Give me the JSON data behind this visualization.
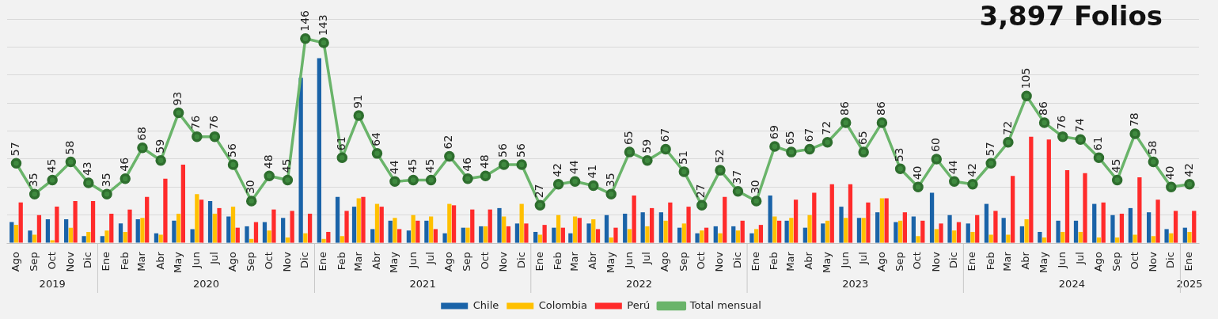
{
  "chart_data": {
    "type": "bar",
    "title": "3,897 Folios",
    "x": [
      "2019-08",
      "2019-09",
      "2019-10",
      "2019-11",
      "2019-12",
      "2020-01",
      "2020-02",
      "2020-03",
      "2020-04",
      "2020-05",
      "2020-06",
      "2020-07",
      "2020-08",
      "2020-09",
      "2020-10",
      "2020-11",
      "2020-12",
      "2021-01",
      "2021-02",
      "2021-03",
      "2021-04",
      "2021-05",
      "2021-06",
      "2021-07",
      "2021-08",
      "2021-09",
      "2021-10",
      "2021-11",
      "2021-12",
      "2022-01",
      "2022-02",
      "2022-03",
      "2022-04",
      "2022-05",
      "2022-06",
      "2022-07",
      "2022-08",
      "2022-09",
      "2022-10",
      "2022-11",
      "2022-12",
      "2023-01",
      "2023-02",
      "2023-03",
      "2023-04",
      "2023-05",
      "2023-06",
      "2023-07",
      "2023-08",
      "2023-09",
      "2023-10",
      "2023-11",
      "2023-12",
      "2024-01",
      "2024-02",
      "2024-03",
      "2024-04",
      "2024-05",
      "2024-06",
      "2024-07",
      "2024-08",
      "2024-09",
      "2024-10",
      "2024-11",
      "2024-12",
      "2025-01"
    ],
    "xticks": [
      {
        "value": "2019-08",
        "label": "Ago"
      },
      {
        "value": "2019-09",
        "label": "Sep"
      },
      {
        "value": "2019-10",
        "label": "Oct"
      },
      {
        "value": "2019-11",
        "label": "Nov"
      },
      {
        "value": "2019-12",
        "label": "Dic"
      },
      {
        "value": "2020-01",
        "label": "Ene"
      },
      {
        "value": "2020-02",
        "label": "Feb"
      },
      {
        "value": "2020-03",
        "label": "Mar"
      },
      {
        "value": "2020-04",
        "label": "Abr"
      },
      {
        "value": "2020-05",
        "label": "May"
      },
      {
        "value": "2020-06",
        "label": "Jun"
      },
      {
        "value": "2020-07",
        "label": "Jul"
      },
      {
        "value": "2020-08",
        "label": "Ago"
      },
      {
        "value": "2020-09",
        "label": "Sep"
      },
      {
        "value": "2020-10",
        "label": "Oct"
      },
      {
        "value": "2020-11",
        "label": "Nov"
      },
      {
        "value": "2020-12",
        "label": "Dic"
      },
      {
        "value": "2021-01",
        "label": "Ene"
      },
      {
        "value": "2021-02",
        "label": "Feb"
      },
      {
        "value": "2021-03",
        "label": "Mar"
      },
      {
        "value": "2021-04",
        "label": "Abr"
      },
      {
        "value": "2021-05",
        "label": "May"
      },
      {
        "value": "2021-06",
        "label": "Jun"
      },
      {
        "value": "2021-07",
        "label": "Jul"
      },
      {
        "value": "2021-08",
        "label": "Ago"
      },
      {
        "value": "2021-09",
        "label": "Sep"
      },
      {
        "value": "2021-10",
        "label": "Oct"
      },
      {
        "value": "2021-11",
        "label": "Nov"
      },
      {
        "value": "2021-12",
        "label": "Dic"
      },
      {
        "value": "2022-01",
        "label": "Ene"
      },
      {
        "value": "2022-02",
        "label": "Feb"
      },
      {
        "value": "2022-03",
        "label": "Mar"
      },
      {
        "value": "2022-04",
        "label": "Abr"
      },
      {
        "value": "2022-05",
        "label": "May"
      },
      {
        "value": "2022-06",
        "label": "Jun"
      },
      {
        "value": "2022-07",
        "label": "Jul"
      },
      {
        "value": "2022-08",
        "label": "Ago"
      },
      {
        "value": "2022-09",
        "label": "Sep"
      },
      {
        "value": "2022-10",
        "label": "Oct"
      },
      {
        "value": "2022-11",
        "label": "Nov"
      },
      {
        "value": "2022-12",
        "label": "Dic"
      },
      {
        "value": "2023-01",
        "label": "Ene"
      },
      {
        "value": "2023-02",
        "label": "Feb"
      },
      {
        "value": "2023-03",
        "label": "Mar"
      },
      {
        "value": "2023-04",
        "label": "Abr"
      },
      {
        "value": "2023-05",
        "label": "May"
      },
      {
        "value": "2023-06",
        "label": "Jun"
      },
      {
        "value": "2023-07",
        "label": "Jul"
      },
      {
        "value": "2023-08",
        "label": "Ago"
      },
      {
        "value": "2023-09",
        "label": "Sep"
      },
      {
        "value": "2023-10",
        "label": "Oct"
      },
      {
        "value": "2023-11",
        "label": "Nov"
      },
      {
        "value": "2023-12",
        "label": "Dic"
      },
      {
        "value": "2024-01",
        "label": "Ene"
      },
      {
        "value": "2024-02",
        "label": "Feb"
      },
      {
        "value": "2024-03",
        "label": "Mar"
      },
      {
        "value": "2024-04",
        "label": "Abr"
      },
      {
        "value": "2024-05",
        "label": "May"
      },
      {
        "value": "2024-06",
        "label": "Jun"
      },
      {
        "value": "2024-07",
        "label": "Jul"
      },
      {
        "value": "2024-08",
        "label": "Ago"
      },
      {
        "value": "2024-09",
        "label": "Sep"
      },
      {
        "value": "2024-10",
        "label": "Oct"
      },
      {
        "value": "2024-11",
        "label": "Nov"
      },
      {
        "value": "2024-12",
        "label": "Dic"
      },
      {
        "value": "2025-01",
        "label": "Ene"
      }
    ],
    "series": [
      {
        "name": "Chile",
        "color": "#1a63a8",
        "values": [
          15,
          9,
          17,
          17,
          5,
          5,
          14,
          17,
          7,
          16,
          10,
          30,
          19,
          12,
          15,
          18,
          118,
          132,
          33,
          26,
          10,
          16,
          9,
          16,
          7,
          11,
          12,
          25,
          14,
          8,
          11,
          7,
          14,
          20,
          21,
          22,
          22,
          11,
          7,
          12,
          12,
          7,
          34,
          16,
          11,
          14,
          26,
          18,
          22,
          15,
          19,
          36,
          20,
          14,
          28,
          18,
          12,
          8,
          16,
          16,
          28,
          20,
          25,
          22,
          10,
          11
        ]
      },
      {
        "name": "Colombia",
        "color": "#ffc000",
        "values": [
          13,
          6,
          2,
          11,
          8,
          9,
          8,
          18,
          6,
          21,
          35,
          21,
          26,
          3,
          9,
          4,
          7,
          3,
          5,
          32,
          28,
          18,
          20,
          19,
          28,
          11,
          12,
          19,
          28,
          6,
          20,
          19,
          17,
          4,
          10,
          12,
          16,
          14,
          9,
          7,
          9,
          10,
          19,
          18,
          20,
          16,
          18,
          18,
          32,
          16,
          5,
          10,
          9,
          8,
          6,
          6,
          17,
          4,
          8,
          8,
          4,
          4,
          6,
          5,
          7,
          8
        ]
      },
      {
        "name": "Perú",
        "color": "#ff2b2b",
        "values": [
          29,
          20,
          26,
          30,
          30,
          21,
          24,
          33,
          46,
          56,
          31,
          25,
          11,
          15,
          24,
          23,
          21,
          8,
          23,
          33,
          26,
          10,
          16,
          10,
          27,
          24,
          24,
          12,
          14,
          13,
          11,
          18,
          10,
          11,
          34,
          25,
          29,
          26,
          11,
          33,
          16,
          13,
          16,
          31,
          36,
          42,
          42,
          29,
          32,
          22,
          16,
          14,
          15,
          20,
          23,
          48,
          76,
          74,
          52,
          50,
          29,
          21,
          47,
          31,
          23,
          23
        ]
      },
      {
        "name": "Total mensual",
        "type": "line",
        "color": "#6ab46a",
        "marker": "circle",
        "data_labels": true,
        "values": [
          57,
          35,
          45,
          58,
          43,
          35,
          46,
          68,
          59,
          93,
          76,
          76,
          56,
          30,
          48,
          45,
          146,
          143,
          61,
          91,
          64,
          44,
          45,
          45,
          62,
          46,
          48,
          56,
          56,
          27,
          42,
          44,
          41,
          35,
          65,
          59,
          67,
          51,
          27,
          52,
          37,
          30,
          69,
          65,
          67,
          72,
          86,
          65,
          86,
          53,
          40,
          60,
          44,
          42,
          57,
          72,
          105,
          86,
          76,
          74,
          61,
          45,
          78,
          58,
          40,
          42
        ]
      }
    ],
    "xlim": [
      "2019-07-16",
      "2025-01-17"
    ],
    "ylim": [
      0,
      160
    ],
    "yticks": [
      {
        "value": 0,
        "label": null
      },
      {
        "value": 20,
        "label": null
      },
      {
        "value": 40,
        "label": null
      },
      {
        "value": 60,
        "label": null
      },
      {
        "value": 80,
        "label": null
      },
      {
        "value": 100,
        "label": null
      },
      {
        "value": 120,
        "label": null
      },
      {
        "value": 140,
        "label": null
      },
      {
        "value": 160,
        "label": null
      }
    ],
    "tick_labels": "x",
    "grid": "y",
    "legend": "bottom",
    "annotations": [
      "2019",
      "2020",
      "2021",
      "2022",
      "2023",
      "2024",
      "2025"
    ]
  }
}
